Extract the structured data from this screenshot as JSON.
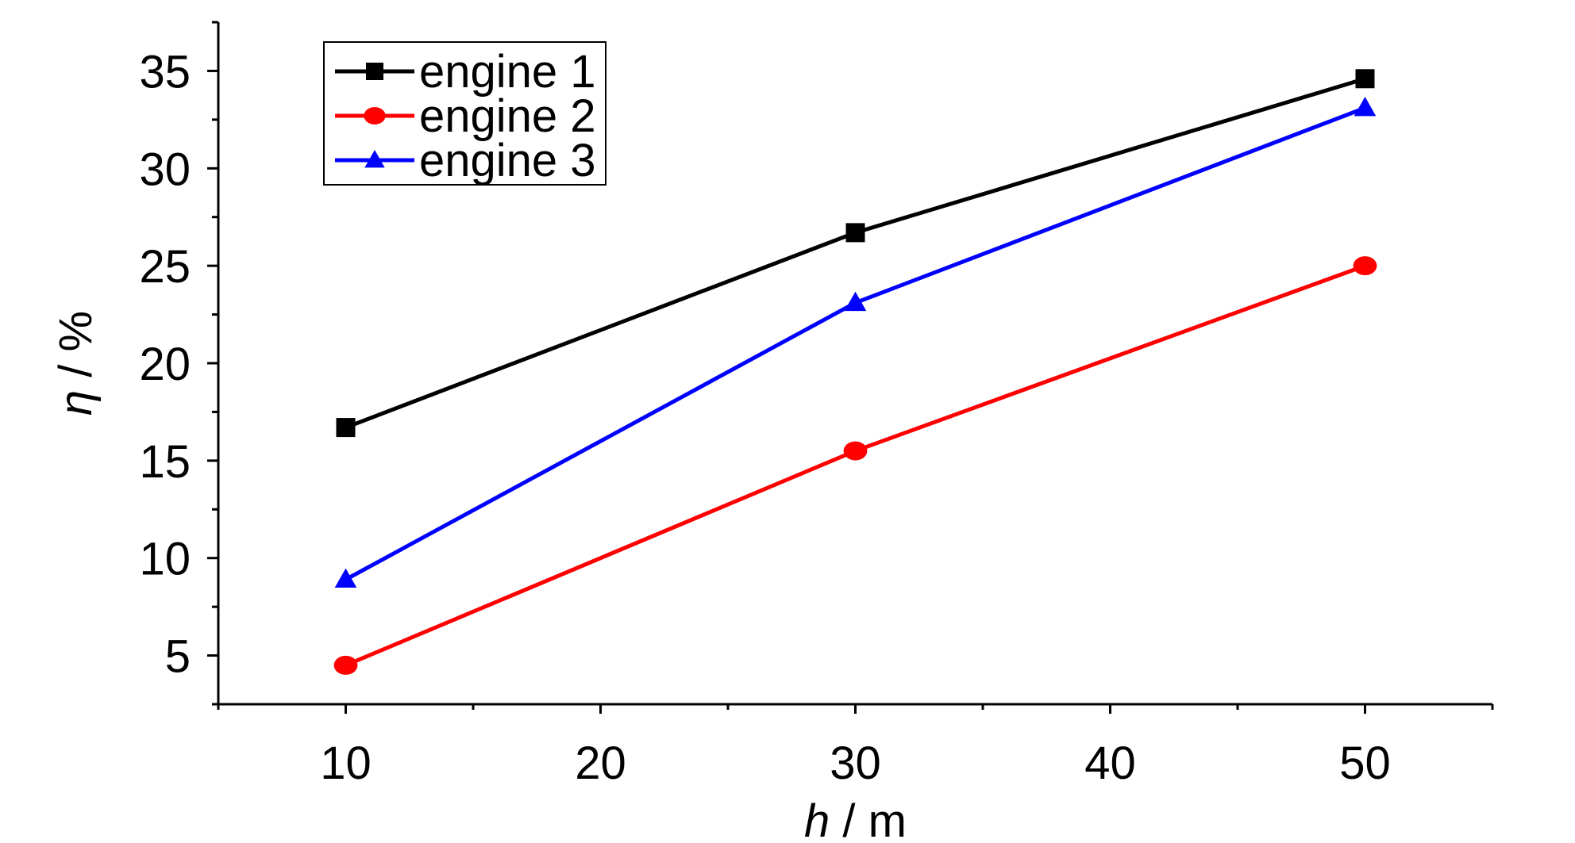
{
  "chart_data": {
    "type": "line",
    "xlabel_var": "h",
    "xlabel_unit": " / m",
    "ylabel_var": "η",
    "ylabel_unit": " / %",
    "xlim": [
      5,
      55
    ],
    "ylim": [
      2.5,
      37.5
    ],
    "x_ticks": [
      10,
      20,
      30,
      40,
      50
    ],
    "y_ticks": [
      5,
      10,
      15,
      20,
      25,
      30,
      35
    ],
    "x": [
      10,
      30,
      50
    ],
    "series": [
      {
        "name": "engine 1",
        "values": [
          16.7,
          26.7,
          34.6
        ],
        "color": "#000000",
        "marker": "square"
      },
      {
        "name": "engine 2",
        "values": [
          4.5,
          15.5,
          25.0
        ],
        "color": "#ff0000",
        "marker": "circle"
      },
      {
        "name": "engine 3",
        "values": [
          8.9,
          23.1,
          33.1
        ],
        "color": "#0000ff",
        "marker": "triangle"
      }
    ],
    "legend_position": "top-left",
    "grid": false
  }
}
